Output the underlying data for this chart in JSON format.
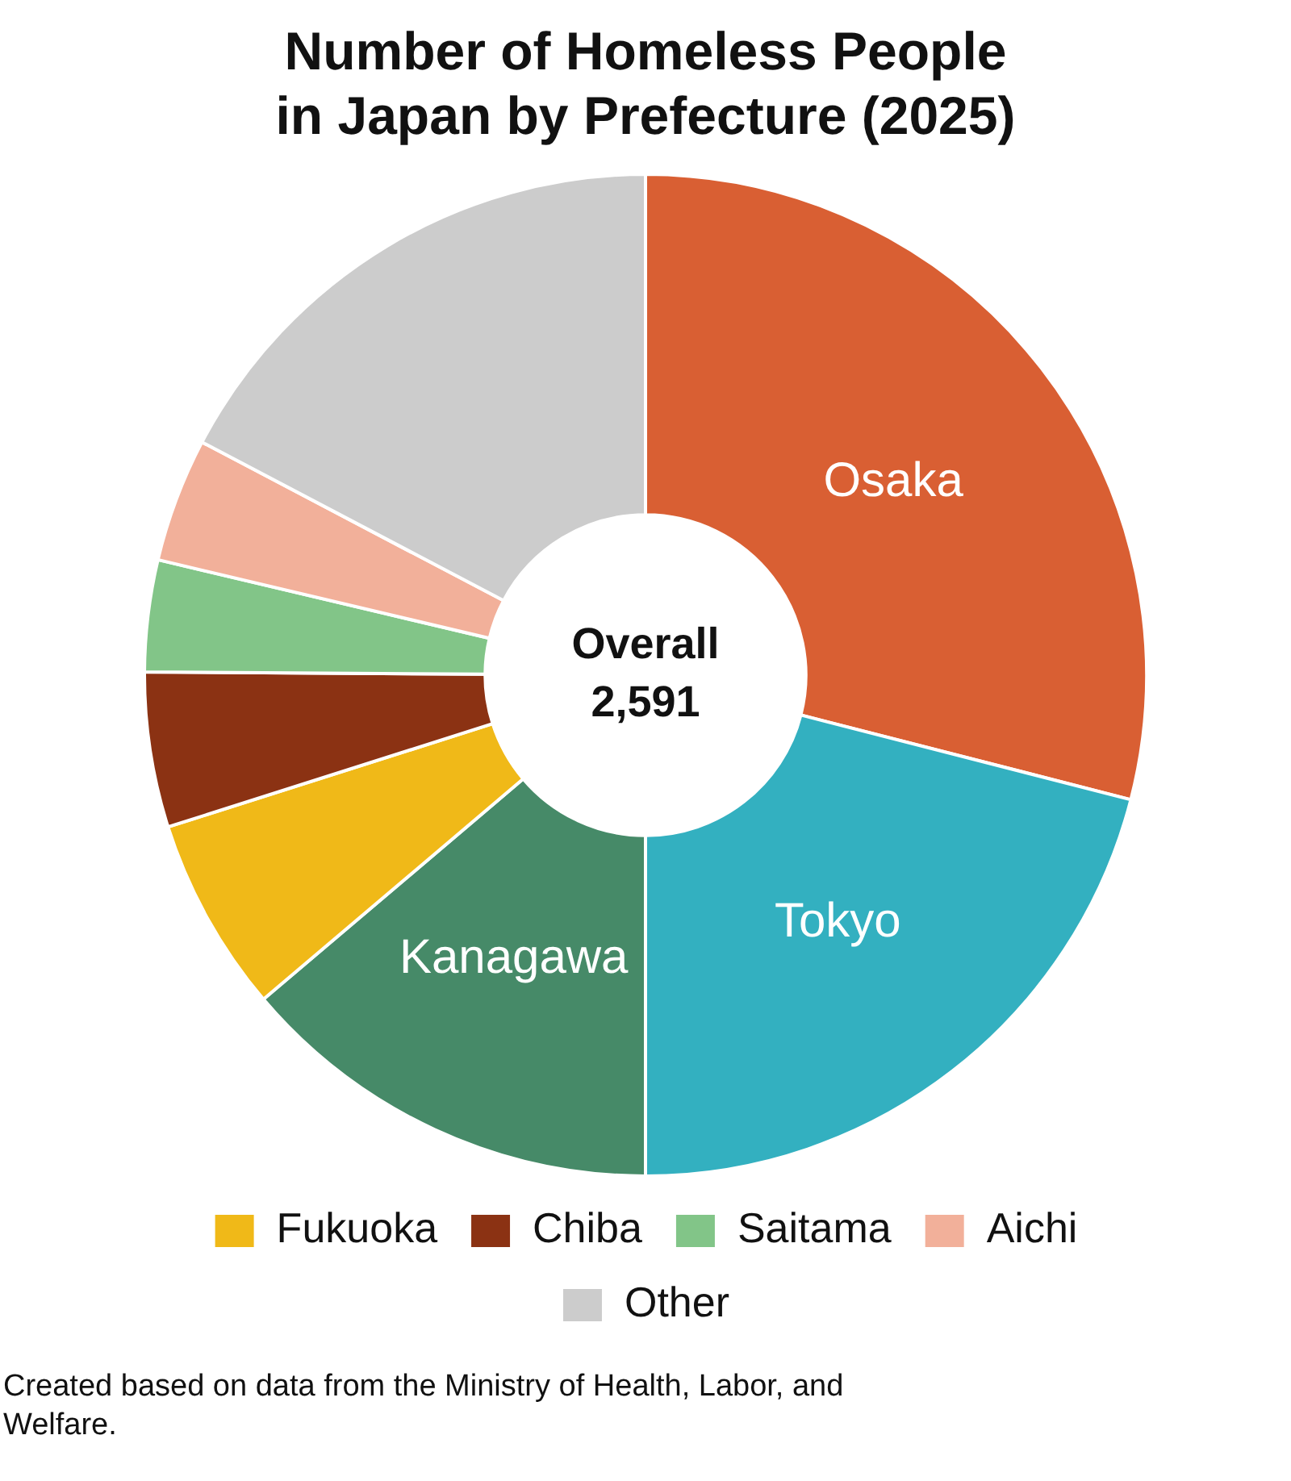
{
  "chart_data": {
    "type": "donut",
    "title": "Number of Homeless People\nin Japan by Prefecture (2025)",
    "categories": [
      "Osaka",
      "Tokyo",
      "Kanagawa",
      "Fukuoka",
      "Chiba",
      "Saitama",
      "Aichi",
      "Other"
    ],
    "values": [
      29.0,
      21.0,
      13.8,
      6.3,
      5.0,
      3.6,
      4.0,
      17.3
    ],
    "colors": [
      "#d95f33",
      "#33b0c0",
      "#468a68",
      "#f0b918",
      "#8b3213",
      "#82c588",
      "#f2b09a",
      "#cccccc"
    ],
    "legend": "bottom",
    "annotations": [
      "Overall 2,591",
      "Created based on data from the Ministry of Health, Labor, and Welfare."
    ]
  }
}
